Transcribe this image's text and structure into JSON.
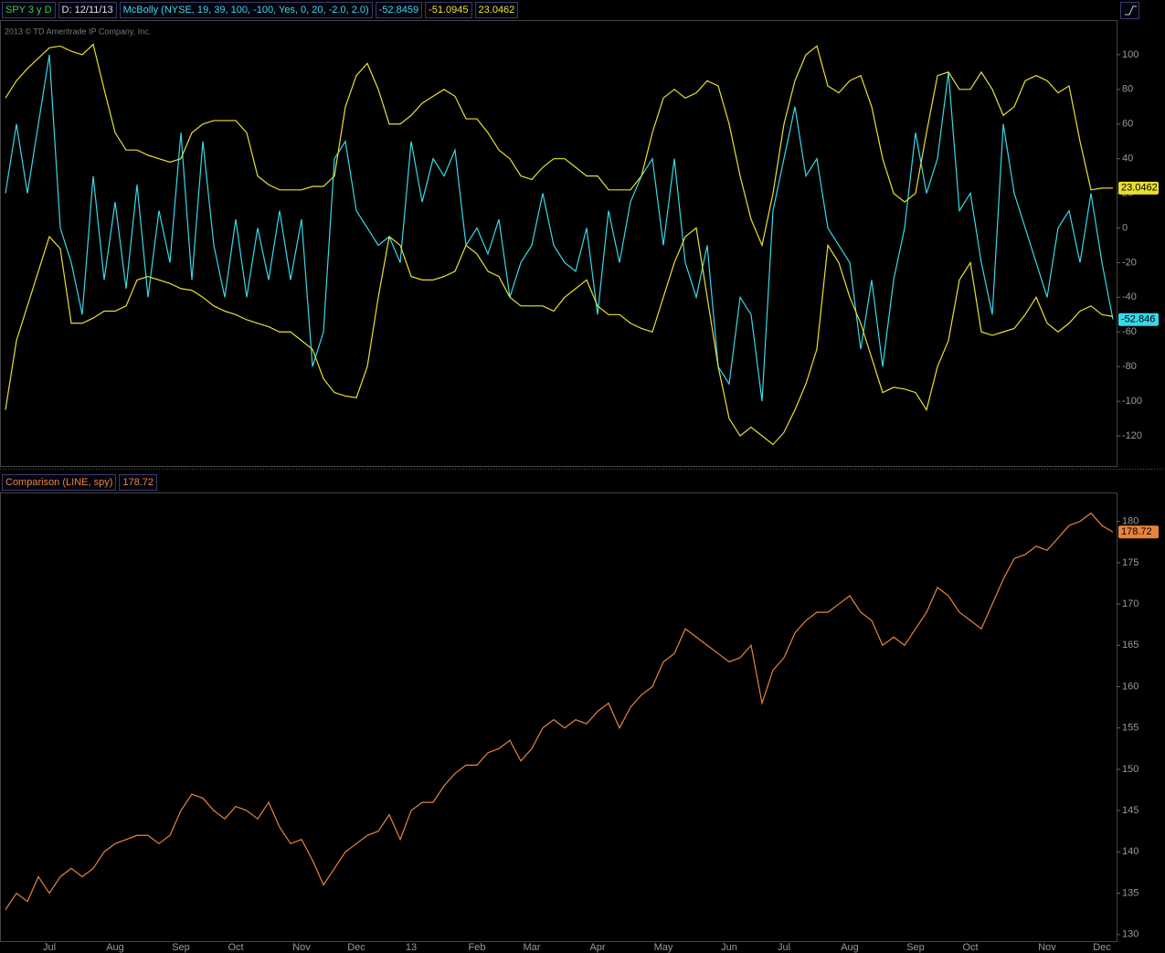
{
  "chart_data": [
    {
      "type": "line",
      "symbol": "SPY 3 y D",
      "date": "D: 12/11/13",
      "study": "McBolly (NYSE, 19, 39, 100, -100, Yes, 0, 20, -2.0, 2.0)",
      "copyright": "2013 © TD Ameritrade IP Company, Inc.",
      "ylim": [
        -137.4,
        120
      ],
      "yticks": [
        100,
        80,
        60,
        40,
        20,
        0,
        -20,
        -40,
        -60,
        -80,
        -100,
        -120
      ],
      "series": [
        {
          "color": "#38d8e8",
          "readout": "-52.8459",
          "tag": "-52.846",
          "values": [
            20,
            60,
            20,
            60,
            100,
            0,
            -20,
            -50,
            30,
            -30,
            15,
            -35,
            25,
            -40,
            10,
            -20,
            55,
            -30,
            50,
            -10,
            -40,
            5,
            -40,
            0,
            -30,
            10,
            -30,
            5,
            -80,
            -60,
            40,
            50,
            10,
            0,
            -10,
            -5,
            -20,
            50,
            15,
            40,
            30,
            45,
            -10,
            0,
            -15,
            5,
            -40,
            -20,
            -10,
            20,
            -10,
            -20,
            -25,
            0,
            -50,
            10,
            -20,
            15,
            30,
            40,
            -10,
            40,
            -20,
            -40,
            -10,
            -80,
            -90,
            -40,
            -50,
            -100,
            10,
            40,
            70,
            30,
            40,
            0,
            -10,
            -20,
            -70,
            -30,
            -80,
            -30,
            0,
            55,
            20,
            40,
            90,
            10,
            20,
            -20,
            -50,
            60,
            20,
            0,
            -20,
            -40,
            0,
            10,
            -20,
            20,
            -20,
            -52.8459
          ]
        },
        {
          "color": "#e8e030",
          "readout": "-51.0945",
          "values": [
            -105,
            -65,
            -45,
            -25,
            -5,
            -12,
            -55,
            -55,
            -52,
            -48,
            -48,
            -45,
            -30,
            -28,
            -30,
            -32,
            -35,
            -36,
            -40,
            -45,
            -48,
            -50,
            -53,
            -55,
            -57,
            -60,
            -60,
            -65,
            -70,
            -87,
            -95,
            -97,
            -98,
            -80,
            -40,
            -5,
            -10,
            -28,
            -30,
            -30,
            -28,
            -25,
            -10,
            -15,
            -25,
            -28,
            -40,
            -45,
            -45,
            -45,
            -48,
            -40,
            -35,
            -30,
            -45,
            -50,
            -50,
            -55,
            -58,
            -60,
            -40,
            -20,
            -5,
            0,
            -40,
            -80,
            -110,
            -120,
            -115,
            -120,
            -125,
            -118,
            -105,
            -90,
            -70,
            -10,
            -20,
            -40,
            -55,
            -75,
            -95,
            -92,
            -93,
            -95,
            -105,
            -80,
            -65,
            -30,
            -20,
            -60,
            -62,
            -60,
            -58,
            -50,
            -40,
            -55,
            -60,
            -55,
            -48,
            -45,
            -50,
            -51.0945
          ]
        },
        {
          "color": "#e8e030",
          "readout": "23.0462",
          "tag": "23.0462",
          "values": [
            75,
            85,
            92,
            98,
            104,
            105,
            102,
            100,
            106,
            80,
            55,
            45,
            45,
            42,
            40,
            38,
            40,
            55,
            60,
            62,
            62,
            62,
            55,
            30,
            25,
            22,
            22,
            22,
            24,
            24,
            30,
            70,
            88,
            95,
            80,
            60,
            60,
            65,
            72,
            76,
            80,
            76,
            63,
            63,
            55,
            45,
            40,
            30,
            28,
            35,
            40,
            40,
            35,
            30,
            30,
            22,
            22,
            22,
            30,
            55,
            75,
            80,
            75,
            78,
            85,
            82,
            60,
            30,
            5,
            -10,
            20,
            60,
            85,
            100,
            105,
            82,
            78,
            85,
            88,
            70,
            40,
            20,
            15,
            20,
            55,
            88,
            90,
            80,
            80,
            90,
            80,
            65,
            70,
            85,
            88,
            85,
            78,
            82,
            50,
            22,
            23,
            23.0462
          ]
        }
      ]
    },
    {
      "type": "line",
      "ylim": [
        129.2,
        183.5
      ],
      "yticks": [
        130,
        135,
        140,
        145,
        150,
        155,
        160,
        165,
        170,
        175,
        180
      ],
      "categories": [
        null,
        null,
        null,
        null,
        "Jul",
        null,
        null,
        null,
        null,
        null,
        "Aug",
        null,
        null,
        null,
        null,
        null,
        "Sep",
        null,
        null,
        null,
        null,
        "Oct",
        null,
        null,
        null,
        null,
        null,
        "Nov",
        null,
        null,
        null,
        null,
        "Dec",
        null,
        null,
        null,
        null,
        "13",
        null,
        null,
        null,
        null,
        null,
        "Feb",
        null,
        null,
        null,
        null,
        "Mar",
        null,
        null,
        null,
        null,
        null,
        "Apr",
        null,
        null,
        null,
        null,
        null,
        "May",
        null,
        null,
        null,
        null,
        null,
        "Jun",
        null,
        null,
        null,
        null,
        "Jul",
        null,
        null,
        null,
        null,
        null,
        "Aug",
        null,
        null,
        null,
        null,
        null,
        "Sep",
        null,
        null,
        null,
        null,
        "Oct",
        null,
        null,
        null,
        null,
        null,
        null,
        "Nov",
        null,
        null,
        null,
        null,
        "Dec",
        null
      ],
      "series": [
        {
          "name": "Comparison (LINE, spy)",
          "color": "#e8843c",
          "readout": "178.72",
          "tag": "178.72",
          "values": [
            133,
            135,
            134,
            137,
            135,
            137,
            138,
            137,
            138,
            140,
            141,
            141.5,
            142,
            142,
            141,
            142,
            145,
            147,
            146.5,
            145,
            144,
            145.5,
            145,
            144,
            146,
            143,
            141,
            141.5,
            139,
            136,
            138,
            140,
            141,
            142,
            142.5,
            144.5,
            141.5,
            145,
            146,
            146,
            148,
            149.5,
            150.5,
            150.5,
            152,
            152.5,
            153.5,
            151,
            152.5,
            155,
            156,
            155,
            156,
            155.5,
            157,
            158,
            155,
            157.5,
            159,
            160,
            163,
            164,
            167,
            166,
            165,
            164,
            163,
            163.5,
            165,
            158,
            162,
            163.5,
            166.5,
            168,
            169,
            169,
            170,
            171,
            169,
            168,
            165,
            166,
            165,
            167,
            169,
            172,
            171,
            169,
            168,
            167,
            170,
            173,
            175.5,
            176,
            177,
            176.5,
            178,
            179.5,
            180,
            181,
            179.5,
            178.72
          ]
        }
      ]
    }
  ]
}
